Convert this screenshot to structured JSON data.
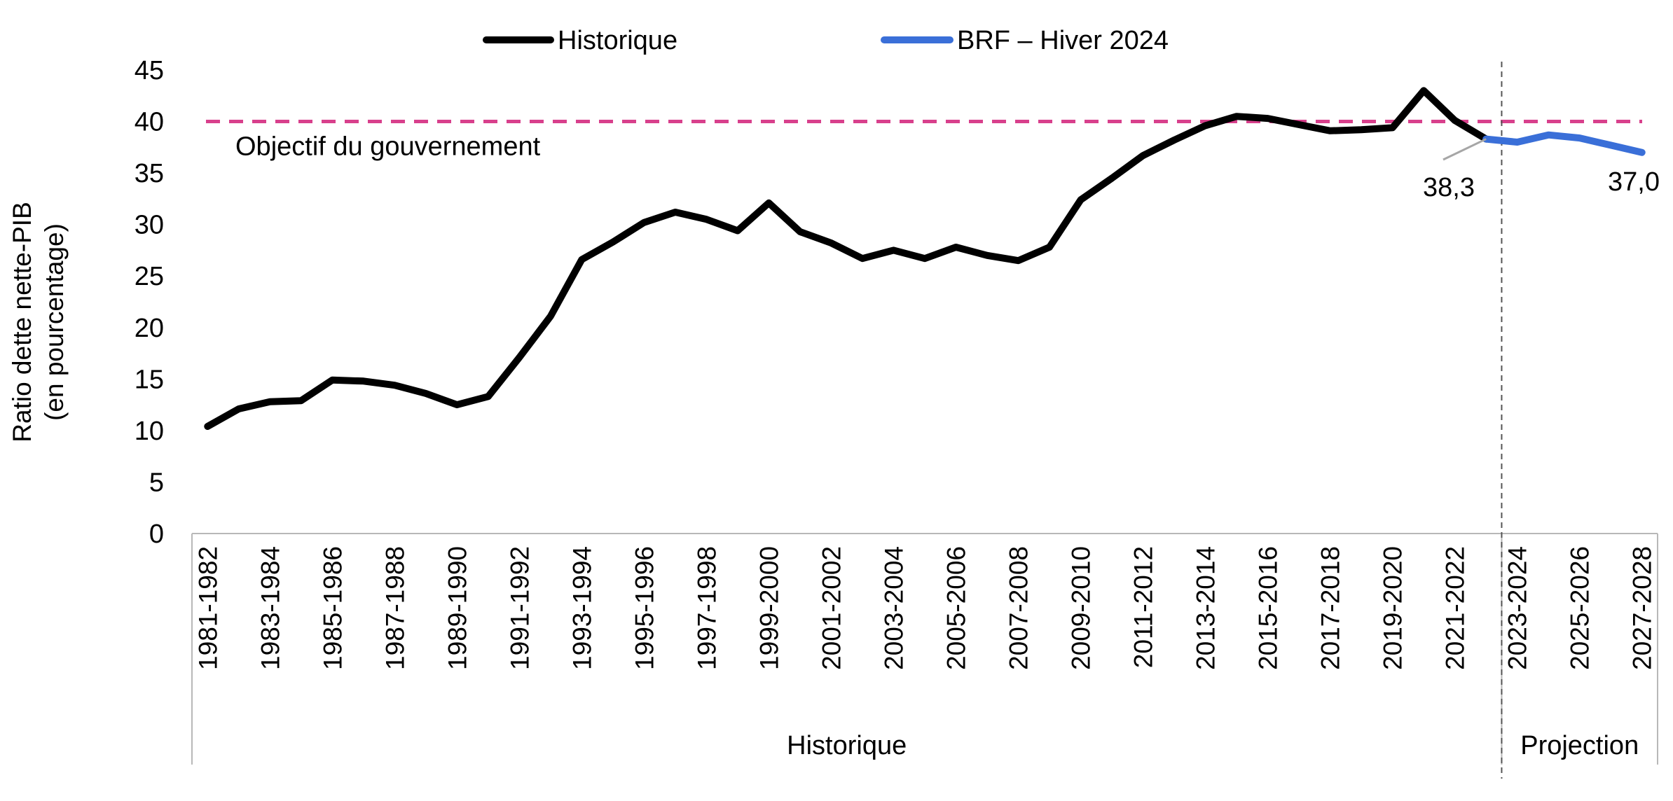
{
  "chart_data": {
    "type": "line",
    "legend": {
      "position": "top",
      "items": [
        {
          "label": "Historique",
          "color": "#000000"
        },
        {
          "label": "BRF – Hiver 2024",
          "color": "#3a6fd8"
        }
      ]
    },
    "ylabel_line1": "Ratio dette nette-PIB",
    "ylabel_line2": "(en pourcentage)",
    "ylim": [
      0,
      45
    ],
    "yticks": [
      "0",
      "5",
      "10",
      "15",
      "20",
      "25",
      "30",
      "35",
      "40",
      "45"
    ],
    "years": [
      "1981-1982",
      "1982-1983",
      "1983-1984",
      "1984-1985",
      "1985-1986",
      "1986-1987",
      "1987-1988",
      "1988-1989",
      "1989-1990",
      "1990-1991",
      "1991-1992",
      "1992-1993",
      "1993-1994",
      "1994-1995",
      "1995-1996",
      "1996-1997",
      "1997-1998",
      "1998-1999",
      "1999-2000",
      "2000-2001",
      "2001-2002",
      "2002-2003",
      "2003-2004",
      "2004-2005",
      "2005-2006",
      "2006-2007",
      "2007-2008",
      "2008-2009",
      "2009-2010",
      "2010-2011",
      "2011-2012",
      "2012-2013",
      "2013-2014",
      "2014-2015",
      "2015-2016",
      "2016-2017",
      "2017-2018",
      "2018-2019",
      "2019-2020",
      "2020-2021",
      "2021-2022",
      "2022-2023",
      "2023-2024",
      "2024-2025",
      "2025-2026",
      "2026-2027",
      "2027-2028"
    ],
    "tick_labels": [
      "1981-1982",
      "",
      "1983-1984",
      "",
      "1985-1986",
      "",
      "1987-1988",
      "",
      "1989-1990",
      "",
      "1991-1992",
      "",
      "1993-1994",
      "",
      "1995-1996",
      "",
      "1997-1998",
      "",
      "1999-2000",
      "",
      "2001-2002",
      "",
      "2003-2004",
      "",
      "2005-2006",
      "",
      "2007-2008",
      "",
      "2009-2010",
      "",
      "2011-2012",
      "",
      "2013-2014",
      "",
      "2015-2016",
      "",
      "2017-2018",
      "",
      "2019-2020",
      "",
      "2021-2022",
      "",
      "2023-2024",
      "",
      "2025-2026",
      "",
      "2027-2028"
    ],
    "series": [
      {
        "name": "Historique",
        "color": "#000000",
        "start_index": 0,
        "values": [
          10.4,
          12.1,
          12.8,
          12.9,
          14.9,
          14.8,
          14.4,
          13.6,
          12.5,
          13.3,
          17.1,
          21.1,
          26.6,
          28.3,
          30.2,
          31.2,
          30.5,
          29.4,
          32.1,
          29.3,
          28.2,
          26.7,
          27.5,
          26.7,
          27.8,
          27.0,
          26.5,
          27.8,
          32.4,
          34.5,
          36.7,
          38.2,
          39.6,
          40.5,
          40.3,
          39.7,
          39.1,
          39.2,
          39.4,
          43.0,
          40.1,
          38.3
        ]
      },
      {
        "name": "BRF – Hiver 2024",
        "color": "#3a6fd8",
        "start_index": 41,
        "values": [
          38.3,
          38.0,
          38.7,
          38.4,
          37.7,
          37.0
        ]
      }
    ],
    "target_line": {
      "value": 40,
      "label": "Objectif du gouvernement",
      "color": "#d8408c"
    },
    "annotations": [
      {
        "text": "38,3",
        "index": 41,
        "value": 38.3
      },
      {
        "text": "37,0",
        "index": 46,
        "value": 37.0
      }
    ],
    "period_groups": [
      {
        "label": "Historique",
        "from_index": 0,
        "to_index": 41
      },
      {
        "label": "Projection",
        "from_index": 42,
        "to_index": 46
      }
    ]
  }
}
